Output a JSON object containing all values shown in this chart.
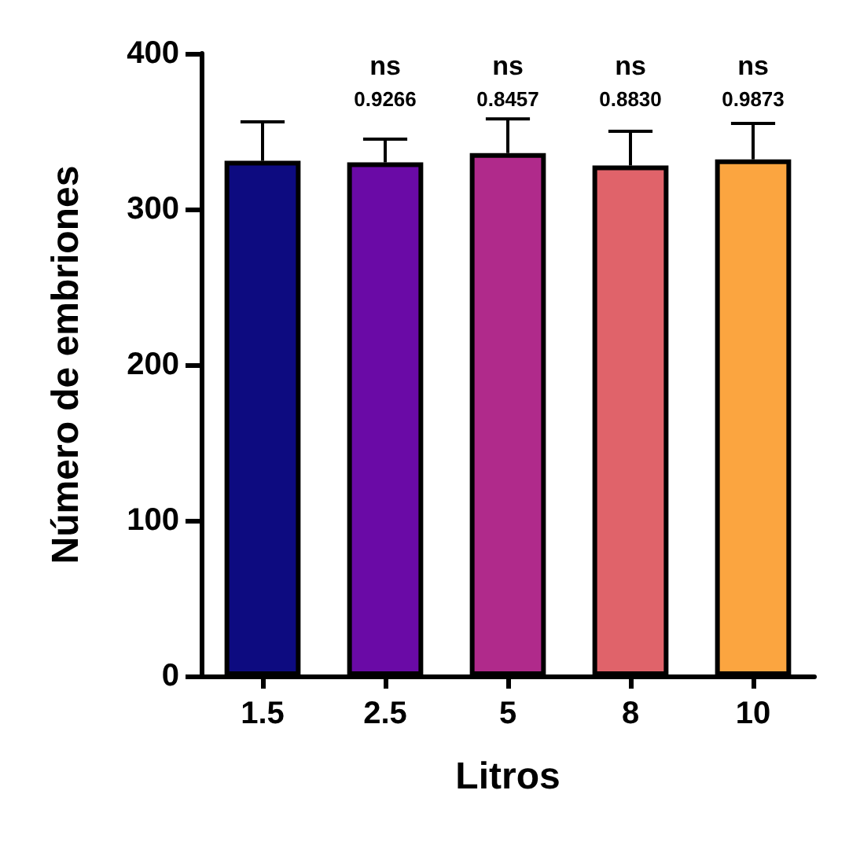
{
  "chart_data": {
    "type": "bar",
    "xlabel": "Litros",
    "ylabel": "Número de embriones",
    "categories": [
      "1.5",
      "2.5",
      "5",
      "8",
      "10"
    ],
    "values": [
      331,
      330,
      336,
      328,
      332
    ],
    "colors": [
      "#0d0b80",
      "#6a0aa6",
      "#b02a8b",
      "#e0636a",
      "#fba540"
    ],
    "errors": [
      [
        331,
        356
      ],
      [
        330,
        345
      ],
      [
        336,
        358
      ],
      [
        328,
        350
      ],
      [
        332,
        355
      ]
    ],
    "ylim": [
      0,
      400
    ],
    "yticks": [
      0,
      100,
      200,
      300,
      400
    ],
    "grid": false,
    "annotations": [
      "ns",
      "0.9266",
      "ns",
      "0.8457",
      "ns",
      "0.8830",
      "ns",
      "0.9873"
    ]
  }
}
